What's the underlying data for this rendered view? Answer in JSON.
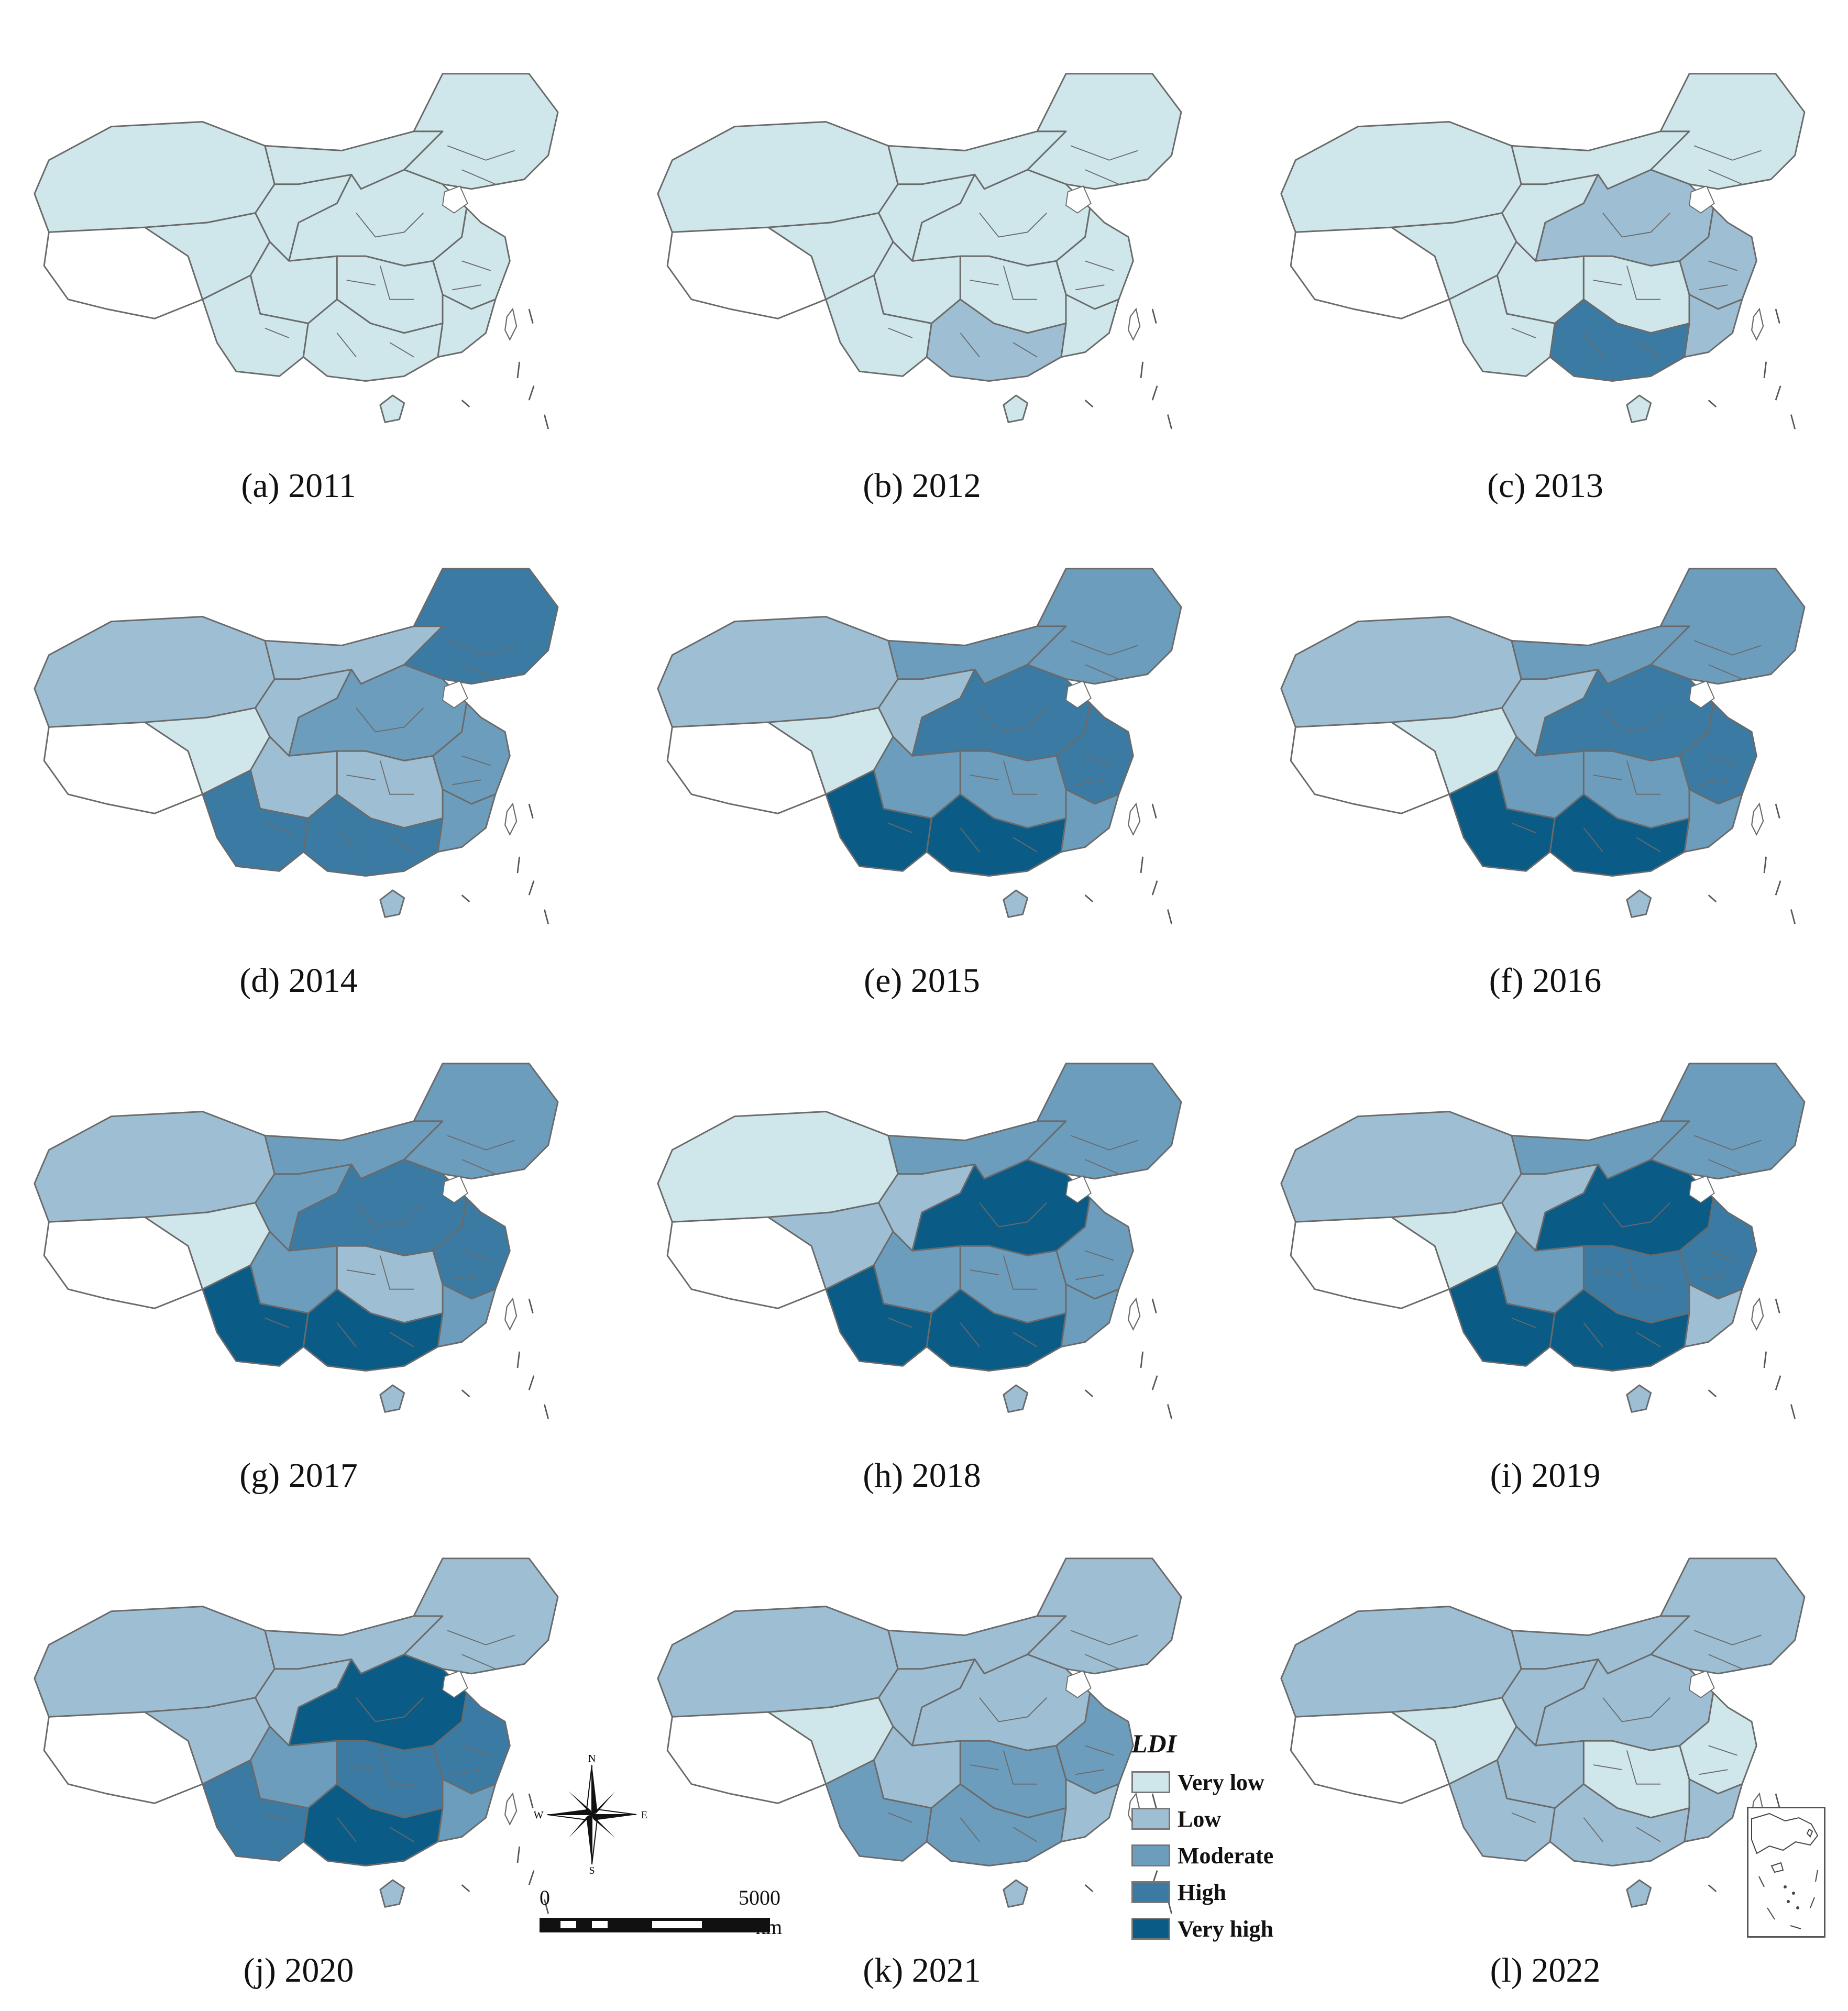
{
  "figure": {
    "panels": [
      {
        "caption": "(a) 2011",
        "year": 2011,
        "levels": {
          "ne": 0,
          "in": 0,
          "xj": 0,
          "gs": 0,
          "qh": 0,
          "n": 0,
          "e": 0,
          "c": 0,
          "sc": 0,
          "sw": 0,
          "gx": 0,
          "s": 0,
          "hn": 0
        }
      },
      {
        "caption": "(b) 2012",
        "year": 2012,
        "levels": {
          "ne": 0,
          "in": 0,
          "xj": 0,
          "gs": 0,
          "qh": 0,
          "n": 0,
          "e": 0,
          "c": 0,
          "sc": 0,
          "sw": 0,
          "gx": 1,
          "s": 0,
          "hn": 0
        }
      },
      {
        "caption": "(c) 2013",
        "year": 2013,
        "levels": {
          "ne": 0,
          "in": 0,
          "xj": 0,
          "gs": 0,
          "qh": 0,
          "n": 1,
          "e": 1,
          "c": 0,
          "sc": 0,
          "sw": 0,
          "gx": 3,
          "s": 1,
          "hn": 0
        }
      },
      {
        "caption": "(d) 2014",
        "year": 2014,
        "levels": {
          "ne": 3,
          "in": 1,
          "xj": 1,
          "gs": 1,
          "qh": 0,
          "n": 2,
          "e": 2,
          "c": 1,
          "sc": 1,
          "sw": 3,
          "gx": 3,
          "s": 2,
          "hn": 1
        }
      },
      {
        "caption": "(e) 2015",
        "year": 2015,
        "levels": {
          "ne": 2,
          "in": 2,
          "xj": 1,
          "gs": 1,
          "qh": 0,
          "n": 3,
          "e": 3,
          "c": 2,
          "sc": 2,
          "sw": 4,
          "gx": 4,
          "s": 2,
          "hn": 1
        }
      },
      {
        "caption": "(f) 2016",
        "year": 2016,
        "levels": {
          "ne": 2,
          "in": 2,
          "xj": 1,
          "gs": 1,
          "qh": 0,
          "n": 3,
          "e": 3,
          "c": 2,
          "sc": 2,
          "sw": 4,
          "gx": 4,
          "s": 2,
          "hn": 1
        }
      },
      {
        "caption": "(g) 2017",
        "year": 2017,
        "levels": {
          "ne": 2,
          "in": 2,
          "xj": 1,
          "gs": 2,
          "qh": 0,
          "n": 3,
          "e": 3,
          "c": 1,
          "sc": 2,
          "sw": 4,
          "gx": 4,
          "s": 2,
          "hn": 1
        }
      },
      {
        "caption": "(h) 2018",
        "year": 2018,
        "levels": {
          "ne": 2,
          "in": 2,
          "xj": 0,
          "gs": 1,
          "qh": 1,
          "n": 4,
          "e": 2,
          "c": 2,
          "sc": 2,
          "sw": 4,
          "gx": 4,
          "s": 2,
          "hn": 1
        }
      },
      {
        "caption": "(i) 2019",
        "year": 2019,
        "levels": {
          "ne": 2,
          "in": 2,
          "xj": 1,
          "gs": 1,
          "qh": 0,
          "n": 4,
          "e": 3,
          "c": 3,
          "sc": 2,
          "sw": 4,
          "gx": 4,
          "s": 1,
          "hn": 1
        }
      },
      {
        "caption": "(j) 2020",
        "year": 2020,
        "levels": {
          "ne": 1,
          "in": 1,
          "xj": 1,
          "gs": 1,
          "qh": 1,
          "n": 4,
          "e": 3,
          "c": 3,
          "sc": 2,
          "sw": 3,
          "gx": 4,
          "s": 2,
          "hn": 1
        }
      },
      {
        "caption": "(k) 2021",
        "year": 2021,
        "levels": {
          "ne": 1,
          "in": 1,
          "xj": 1,
          "gs": 1,
          "qh": 0,
          "n": 1,
          "e": 2,
          "c": 2,
          "sc": 1,
          "sw": 2,
          "gx": 2,
          "s": 1,
          "hn": 1
        }
      },
      {
        "caption": "(l) 2022",
        "year": 2022,
        "levels": {
          "ne": 1,
          "in": 1,
          "xj": 1,
          "gs": 1,
          "qh": 0,
          "n": 1,
          "e": 0,
          "c": 0,
          "sc": 1,
          "sw": 1,
          "gx": 1,
          "s": 1,
          "hn": 1
        }
      }
    ]
  },
  "legend": {
    "title": "LDI",
    "items": [
      {
        "label": "Very low",
        "color": "#cfe7ea"
      },
      {
        "label": "Low",
        "color": "#9ebfd3"
      },
      {
        "label": "Moderate",
        "color": "#6d9dbc"
      },
      {
        "label": "High",
        "color": "#3b7ba3"
      },
      {
        "label": "Very high",
        "color": "#0b5b87"
      }
    ]
  },
  "colors": {
    "tibet": "#ffffff",
    "border": "#6a6a6a"
  },
  "scalebar": {
    "start_label": "0",
    "end_label": "5000",
    "unit": "km"
  },
  "compass": {
    "n": "N",
    "s": "S",
    "e": "E",
    "w": "W"
  }
}
